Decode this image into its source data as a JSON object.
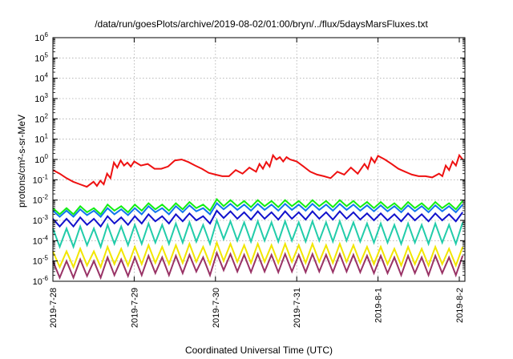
{
  "chart_data": {
    "type": "line",
    "title": "/data/run/goesPlots/archive/2019-08-02/01:00/bryn/../flux/5daysMarsFluxes.txt",
    "xlabel": "Coordinated Universal Time (UTC)",
    "ylabel": "protons/cm²-s-sr-MeV",
    "y_scale": "log",
    "ylim": [
      1e-06,
      1000000.0
    ],
    "xlim": [
      "2019-7-28",
      "2019-8-2"
    ],
    "x_ticks": [
      "2019-7-28",
      "2019-7-29",
      "2019-7-30",
      "2019-7-31",
      "2019-8-1",
      "2019-8-2"
    ],
    "y_ticks": [
      {
        "value": 1e-06,
        "base": "10",
        "exp": "-6"
      },
      {
        "value": 1e-05,
        "base": "10",
        "exp": "-5"
      },
      {
        "value": 0.0001,
        "base": "10",
        "exp": "-4"
      },
      {
        "value": 0.001,
        "base": "10",
        "exp": "-3"
      },
      {
        "value": 0.01,
        "base": "10",
        "exp": "-2"
      },
      {
        "value": 0.1,
        "base": "10",
        "exp": "-1"
      },
      {
        "value": 1,
        "base": "10",
        "exp": "0"
      },
      {
        "value": 10.0,
        "base": "10",
        "exp": "1"
      },
      {
        "value": 100.0,
        "base": "10",
        "exp": "2"
      },
      {
        "value": 1000.0,
        "base": "10",
        "exp": "3"
      },
      {
        "value": 10000.0,
        "base": "10",
        "exp": "4"
      },
      {
        "value": 100000.0,
        "base": "10",
        "exp": "5"
      },
      {
        "value": 1000000.0,
        "base": "10",
        "exp": "6"
      }
    ],
    "grid": true,
    "series": [
      {
        "color": "#ee1111",
        "x": [
          "2019-7-28 00:00",
          "2019-7-28 02:00",
          "2019-7-28 04:00",
          "2019-7-28 06:00",
          "2019-7-28 08:00",
          "2019-7-28 10:00",
          "2019-7-28 12:00",
          "2019-7-28 13:00",
          "2019-7-28 14:00",
          "2019-7-28 15:00",
          "2019-7-28 16:00",
          "2019-7-28 17:00",
          "2019-7-28 18:00",
          "2019-7-28 19:00",
          "2019-7-28 20:00",
          "2019-7-28 21:00",
          "2019-7-28 22:00",
          "2019-7-28 23:00",
          "2019-7-29 00:00",
          "2019-7-29 02:00",
          "2019-7-29 04:00",
          "2019-7-29 06:00",
          "2019-7-29 08:00",
          "2019-7-29 10:00",
          "2019-7-29 12:00",
          "2019-7-29 14:00",
          "2019-7-29 16:00",
          "2019-7-29 18:00",
          "2019-7-29 20:00",
          "2019-7-29 22:00",
          "2019-7-30 00:00",
          "2019-7-30 02:00",
          "2019-7-30 04:00",
          "2019-7-30 06:00",
          "2019-7-30 08:00",
          "2019-7-30 10:00",
          "2019-7-30 12:00",
          "2019-7-30 13:00",
          "2019-7-30 14:00",
          "2019-7-30 15:00",
          "2019-7-30 16:00",
          "2019-7-30 17:00",
          "2019-7-30 18:00",
          "2019-7-30 19:00",
          "2019-7-30 20:00",
          "2019-7-30 21:00",
          "2019-7-30 22:00",
          "2019-7-31 00:00",
          "2019-7-31 02:00",
          "2019-7-31 04:00",
          "2019-7-31 06:00",
          "2019-7-31 08:00",
          "2019-7-31 10:00",
          "2019-7-31 12:00",
          "2019-7-31 14:00",
          "2019-7-31 16:00",
          "2019-7-31 18:00",
          "2019-7-31 20:00",
          "2019-7-31 21:00",
          "2019-7-31 22:00",
          "2019-7-31 23:00",
          "2019-8-1 00:00",
          "2019-8-1 02:00",
          "2019-8-1 04:00",
          "2019-8-1 06:00",
          "2019-8-1 08:00",
          "2019-8-1 10:00",
          "2019-8-1 12:00",
          "2019-8-1 14:00",
          "2019-8-1 16:00",
          "2019-8-1 18:00",
          "2019-8-1 19:00",
          "2019-8-1 20:00",
          "2019-8-1 21:00",
          "2019-8-1 22:00",
          "2019-8-1 23:00",
          "2019-8-2 00:00",
          "2019-8-2 01:00"
        ],
        "values": [
          0.3,
          0.2,
          0.12,
          0.08,
          0.06,
          0.045,
          0.08,
          0.05,
          0.09,
          0.06,
          0.2,
          0.12,
          0.7,
          0.4,
          0.9,
          0.5,
          0.7,
          0.45,
          0.8,
          0.5,
          0.6,
          0.35,
          0.35,
          0.45,
          0.9,
          1.0,
          0.75,
          0.5,
          0.35,
          0.22,
          0.18,
          0.15,
          0.15,
          0.3,
          0.2,
          0.4,
          0.25,
          0.6,
          0.35,
          0.75,
          0.45,
          1.6,
          1.0,
          1.3,
          0.8,
          1.3,
          1.0,
          0.8,
          0.45,
          0.25,
          0.18,
          0.15,
          0.12,
          0.25,
          0.18,
          0.4,
          0.2,
          0.6,
          0.35,
          1.2,
          0.7,
          1.5,
          1.0,
          0.6,
          0.35,
          0.25,
          0.18,
          0.15,
          0.15,
          0.13,
          0.2,
          0.15,
          0.5,
          0.3,
          0.8,
          0.5,
          1.6,
          1.0
        ]
      },
      {
        "color": "#11ee11",
        "x_start": "2019-7-28 00:00",
        "x_end": "2019-8-2 01:00",
        "values": [
          0.004,
          0.002,
          0.004,
          0.002,
          0.005,
          0.0025,
          0.004,
          0.002,
          0.006,
          0.003,
          0.005,
          0.0025,
          0.006,
          0.003,
          0.007,
          0.0035,
          0.006,
          0.003,
          0.007,
          0.0035,
          0.008,
          0.004,
          0.006,
          0.003,
          0.011,
          0.005,
          0.01,
          0.005,
          0.009,
          0.0045,
          0.01,
          0.005,
          0.009,
          0.0045,
          0.01,
          0.005,
          0.009,
          0.0045,
          0.01,
          0.005,
          0.009,
          0.0045,
          0.01,
          0.005,
          0.009,
          0.0045,
          0.008,
          0.004,
          0.008,
          0.004,
          0.007,
          0.0035,
          0.008,
          0.004,
          0.007,
          0.0035,
          0.008,
          0.004,
          0.007,
          0.0035,
          0.009
        ]
      },
      {
        "color": "#1177ee",
        "x_start": "2019-7-28 00:00",
        "x_end": "2019-8-2 01:00",
        "values": [
          0.003,
          0.0015,
          0.003,
          0.0015,
          0.0035,
          0.0018,
          0.003,
          0.0015,
          0.004,
          0.002,
          0.0035,
          0.0018,
          0.004,
          0.002,
          0.005,
          0.0025,
          0.004,
          0.002,
          0.005,
          0.0025,
          0.0055,
          0.0028,
          0.004,
          0.002,
          0.007,
          0.0035,
          0.0065,
          0.0033,
          0.006,
          0.003,
          0.0065,
          0.0033,
          0.006,
          0.003,
          0.0065,
          0.0033,
          0.006,
          0.003,
          0.0065,
          0.0033,
          0.006,
          0.003,
          0.0065,
          0.0033,
          0.006,
          0.003,
          0.0055,
          0.0028,
          0.0055,
          0.0028,
          0.005,
          0.0025,
          0.0055,
          0.0028,
          0.005,
          0.0025,
          0.0055,
          0.0028,
          0.005,
          0.0025,
          0.006
        ]
      },
      {
        "color": "#1111cc",
        "x_start": "2019-7-28 00:00",
        "x_end": "2019-8-2 01:00",
        "values": [
          0.0012,
          0.0005,
          0.0012,
          0.0005,
          0.0014,
          0.0006,
          0.0012,
          0.0005,
          0.0016,
          0.0007,
          0.0014,
          0.0006,
          0.0016,
          0.0007,
          0.002,
          0.0009,
          0.0016,
          0.0007,
          0.002,
          0.0009,
          0.0022,
          0.001,
          0.0016,
          0.0007,
          0.003,
          0.0013,
          0.0028,
          0.0012,
          0.0025,
          0.0011,
          0.0028,
          0.0012,
          0.0025,
          0.0011,
          0.0028,
          0.0012,
          0.0025,
          0.0011,
          0.0028,
          0.0012,
          0.0025,
          0.0011,
          0.0028,
          0.0012,
          0.0025,
          0.0011,
          0.0022,
          0.001,
          0.0022,
          0.001,
          0.002,
          0.0009,
          0.0022,
          0.001,
          0.002,
          0.0009,
          0.0022,
          0.001,
          0.002,
          0.0009,
          0.0025
        ]
      },
      {
        "color": "#22ccaa",
        "x_start": "2019-7-28 00:00",
        "x_end": "2019-8-2 01:00",
        "values": [
          0.0004,
          5e-05,
          0.0004,
          5e-05,
          0.0005,
          6e-05,
          0.0004,
          5e-05,
          0.0006,
          7e-05,
          0.0005,
          6e-05,
          0.0006,
          7e-05,
          0.0007,
          8e-05,
          0.0006,
          7e-05,
          0.0007,
          8e-05,
          0.0008,
          9e-05,
          0.0006,
          7e-05,
          0.001,
          0.00012,
          0.0009,
          0.0001,
          0.0008,
          9e-05,
          0.0009,
          0.0001,
          0.0008,
          9e-05,
          0.0009,
          0.0001,
          0.0008,
          9e-05,
          0.0009,
          0.0001,
          0.0008,
          9e-05,
          0.0009,
          0.0001,
          0.0008,
          9e-05,
          0.0007,
          8e-05,
          0.0007,
          8e-05,
          0.0006,
          7e-05,
          0.0007,
          8e-05,
          0.0006,
          7e-05,
          0.0007,
          8e-05,
          0.0006,
          7e-05,
          0.0008
        ]
      },
      {
        "color": "#f2e600",
        "x_start": "2019-7-28 00:00",
        "x_end": "2019-8-2 01:00",
        "values": [
          3e-05,
          5e-06,
          3e-05,
          5e-06,
          4e-05,
          6e-06,
          3e-05,
          5e-06,
          5e-05,
          7e-06,
          4e-05,
          6e-06,
          5e-05,
          7e-06,
          6e-05,
          8e-06,
          5e-05,
          7e-06,
          6e-05,
          8e-06,
          7e-05,
          9e-06,
          5e-05,
          7e-06,
          8e-05,
          1e-05,
          7e-05,
          9e-06,
          6e-05,
          8e-06,
          7e-05,
          9e-06,
          6e-05,
          8e-06,
          7e-05,
          9e-06,
          6e-05,
          8e-06,
          7e-05,
          9e-06,
          6e-05,
          8e-06,
          7e-05,
          9e-06,
          6e-05,
          8e-06,
          5e-05,
          7e-06,
          5e-05,
          7e-06,
          4e-05,
          6e-06,
          5e-05,
          7e-06,
          4e-05,
          6e-06,
          5e-05,
          7e-06,
          4e-05,
          6e-06,
          5e-05
        ]
      },
      {
        "color": "#993366",
        "x_start": "2019-7-28 00:00",
        "x_end": "2019-8-2 01:00",
        "values": [
          1e-05,
          1.5e-06,
          1e-05,
          1.5e-06,
          1.2e-05,
          1.8e-06,
          1e-05,
          1.5e-06,
          1.5e-05,
          2e-06,
          1.2e-05,
          1.8e-06,
          1.5e-05,
          2e-06,
          1.8e-05,
          2.5e-06,
          1.5e-05,
          2e-06,
          1.8e-05,
          2.5e-06,
          2e-05,
          3e-06,
          1.5e-05,
          2e-06,
          2.5e-05,
          3.5e-06,
          2.2e-05,
          3e-06,
          2e-05,
          2.8e-06,
          2.2e-05,
          3e-06,
          2e-05,
          2.8e-06,
          2.2e-05,
          3e-06,
          2e-05,
          2.8e-06,
          2.2e-05,
          3e-06,
          2e-05,
          2.8e-06,
          2.2e-05,
          3e-06,
          2e-05,
          2.8e-06,
          1.8e-05,
          2.5e-06,
          1.8e-05,
          2.5e-06,
          1.5e-05,
          2e-06,
          1.8e-05,
          2.5e-06,
          1.5e-05,
          2e-06,
          1.8e-05,
          2.5e-06,
          1.5e-05,
          2e-06,
          1.8e-05
        ]
      }
    ]
  }
}
